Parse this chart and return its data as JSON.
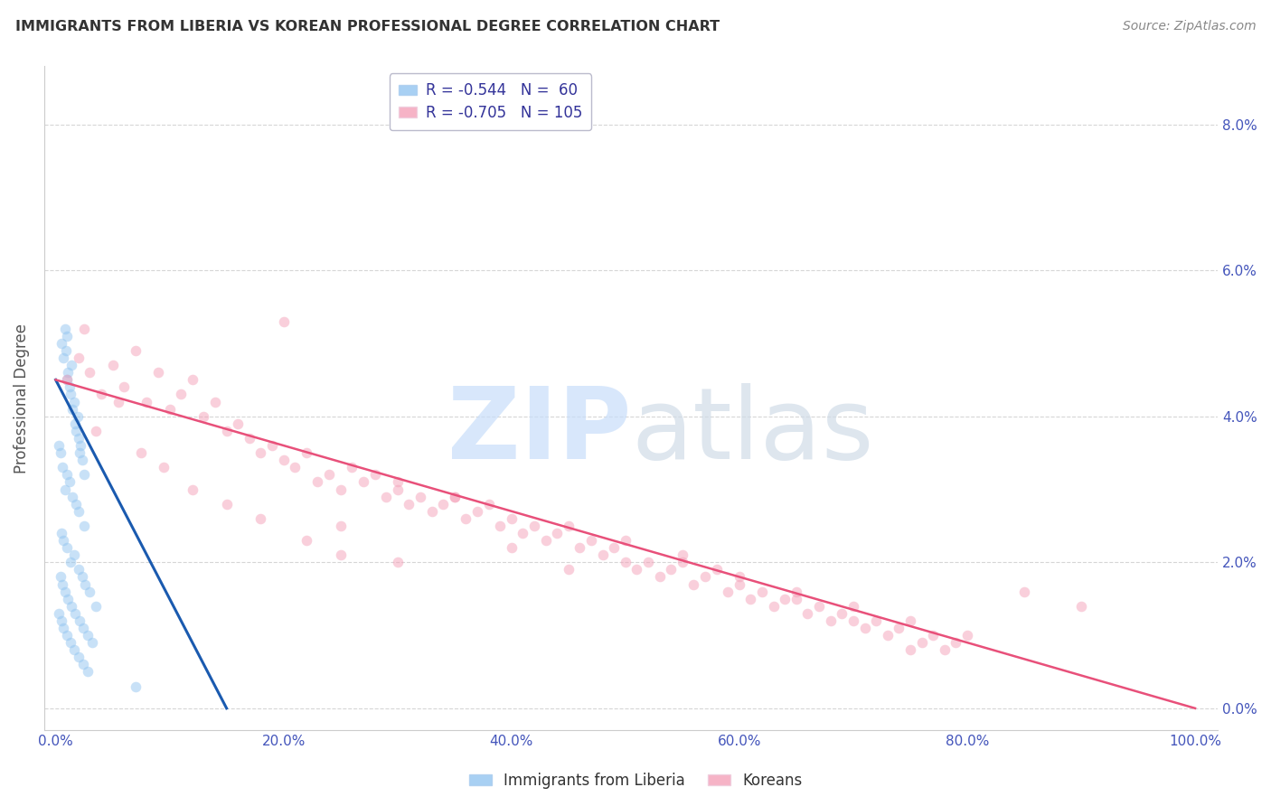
{
  "title": "IMMIGRANTS FROM LIBERIA VS KOREAN PROFESSIONAL DEGREE CORRELATION CHART",
  "source": "Source: ZipAtlas.com",
  "ylabel": "Professional Degree",
  "xlabel_vals": [
    0.0,
    20.0,
    40.0,
    60.0,
    80.0,
    100.0
  ],
  "ylabel_vals": [
    0.0,
    2.0,
    4.0,
    6.0,
    8.0
  ],
  "xlim": [
    -1.0,
    102.0
  ],
  "ylim": [
    -0.3,
    8.8
  ],
  "legend_label_liberia": "Immigrants from Liberia",
  "legend_label_korean": "Koreans",
  "blue_scatter_color": "#92C5F0",
  "pink_scatter_color": "#F4A0B8",
  "blue_line_color": "#1A5AAF",
  "pink_line_color": "#E8507A",
  "watermark_color_zip": "#C8DEFA",
  "watermark_color_atlas": "#D0DCE8",
  "title_color": "#333333",
  "source_color": "#888888",
  "axis_tick_color": "#4455BB",
  "ylabel_color": "#555555",
  "grid_color": "#CCCCCC",
  "background_color": "#FFFFFF",
  "legend_text_color": "#333399",
  "blue_scatter_x": [
    0.5,
    0.7,
    0.8,
    0.9,
    1.0,
    1.0,
    1.1,
    1.2,
    1.3,
    1.4,
    1.5,
    1.6,
    1.7,
    1.8,
    1.9,
    2.0,
    2.1,
    2.2,
    2.3,
    2.5,
    0.3,
    0.4,
    0.6,
    0.8,
    1.0,
    1.2,
    1.5,
    1.8,
    2.0,
    2.5,
    0.5,
    0.7,
    1.0,
    1.3,
    1.6,
    2.0,
    2.3,
    2.6,
    3.0,
    3.5,
    0.4,
    0.6,
    0.8,
    1.1,
    1.4,
    1.7,
    2.1,
    2.4,
    2.8,
    3.2,
    0.3,
    0.5,
    0.7,
    1.0,
    1.3,
    1.6,
    2.0,
    2.4,
    2.8,
    7.0
  ],
  "blue_scatter_y": [
    5.0,
    4.8,
    5.2,
    4.9,
    5.1,
    4.5,
    4.6,
    4.4,
    4.3,
    4.7,
    4.1,
    4.2,
    3.9,
    3.8,
    4.0,
    3.7,
    3.5,
    3.6,
    3.4,
    3.2,
    3.6,
    3.5,
    3.3,
    3.0,
    3.2,
    3.1,
    2.9,
    2.8,
    2.7,
    2.5,
    2.4,
    2.3,
    2.2,
    2.0,
    2.1,
    1.9,
    1.8,
    1.7,
    1.6,
    1.4,
    1.8,
    1.7,
    1.6,
    1.5,
    1.4,
    1.3,
    1.2,
    1.1,
    1.0,
    0.9,
    1.3,
    1.2,
    1.1,
    1.0,
    0.9,
    0.8,
    0.7,
    0.6,
    0.5,
    0.3
  ],
  "pink_scatter_x": [
    1.0,
    2.0,
    3.0,
    4.0,
    5.0,
    6.0,
    7.0,
    8.0,
    9.0,
    10.0,
    11.0,
    12.0,
    13.0,
    14.0,
    15.0,
    16.0,
    17.0,
    18.0,
    19.0,
    20.0,
    21.0,
    22.0,
    23.0,
    24.0,
    25.0,
    26.0,
    27.0,
    28.0,
    29.0,
    30.0,
    31.0,
    32.0,
    33.0,
    34.0,
    35.0,
    36.0,
    37.0,
    38.0,
    39.0,
    40.0,
    41.0,
    42.0,
    43.0,
    44.0,
    45.0,
    46.0,
    47.0,
    48.0,
    49.0,
    50.0,
    51.0,
    52.0,
    53.0,
    54.0,
    55.0,
    56.0,
    57.0,
    58.0,
    59.0,
    60.0,
    61.0,
    62.0,
    63.0,
    64.0,
    65.0,
    66.0,
    67.0,
    68.0,
    69.0,
    70.0,
    71.0,
    72.0,
    73.0,
    74.0,
    75.0,
    76.0,
    77.0,
    78.0,
    79.0,
    80.0,
    2.5,
    3.5,
    5.5,
    7.5,
    9.5,
    12.0,
    15.0,
    18.0,
    22.0,
    25.0,
    30.0,
    35.0,
    40.0,
    45.0,
    50.0,
    55.0,
    60.0,
    65.0,
    70.0,
    75.0,
    20.0,
    25.0,
    30.0,
    85.0,
    90.0
  ],
  "pink_scatter_y": [
    4.5,
    4.8,
    4.6,
    4.3,
    4.7,
    4.4,
    4.9,
    4.2,
    4.6,
    4.1,
    4.3,
    4.5,
    4.0,
    4.2,
    3.8,
    3.9,
    3.7,
    3.5,
    3.6,
    3.4,
    3.3,
    3.5,
    3.1,
    3.2,
    3.0,
    3.3,
    3.1,
    3.2,
    2.9,
    3.0,
    2.8,
    2.9,
    2.7,
    2.8,
    2.9,
    2.6,
    2.7,
    2.8,
    2.5,
    2.6,
    2.4,
    2.5,
    2.3,
    2.4,
    2.5,
    2.2,
    2.3,
    2.1,
    2.2,
    2.0,
    1.9,
    2.0,
    1.8,
    1.9,
    2.0,
    1.7,
    1.8,
    1.9,
    1.6,
    1.7,
    1.5,
    1.6,
    1.4,
    1.5,
    1.6,
    1.3,
    1.4,
    1.2,
    1.3,
    1.4,
    1.1,
    1.2,
    1.0,
    1.1,
    1.2,
    0.9,
    1.0,
    0.8,
    0.9,
    1.0,
    5.2,
    3.8,
    4.2,
    3.5,
    3.3,
    3.0,
    2.8,
    2.6,
    2.3,
    2.1,
    3.1,
    2.9,
    2.2,
    1.9,
    2.3,
    2.1,
    1.8,
    1.5,
    1.2,
    0.8,
    5.3,
    2.5,
    2.0,
    1.6,
    1.4
  ],
  "blue_line_x": [
    0.0,
    15.0
  ],
  "blue_line_y": [
    4.5,
    0.0
  ],
  "pink_line_x": [
    0.0,
    100.0
  ],
  "pink_line_y": [
    4.5,
    0.0
  ],
  "marker_size": 70,
  "marker_alpha": 0.5
}
